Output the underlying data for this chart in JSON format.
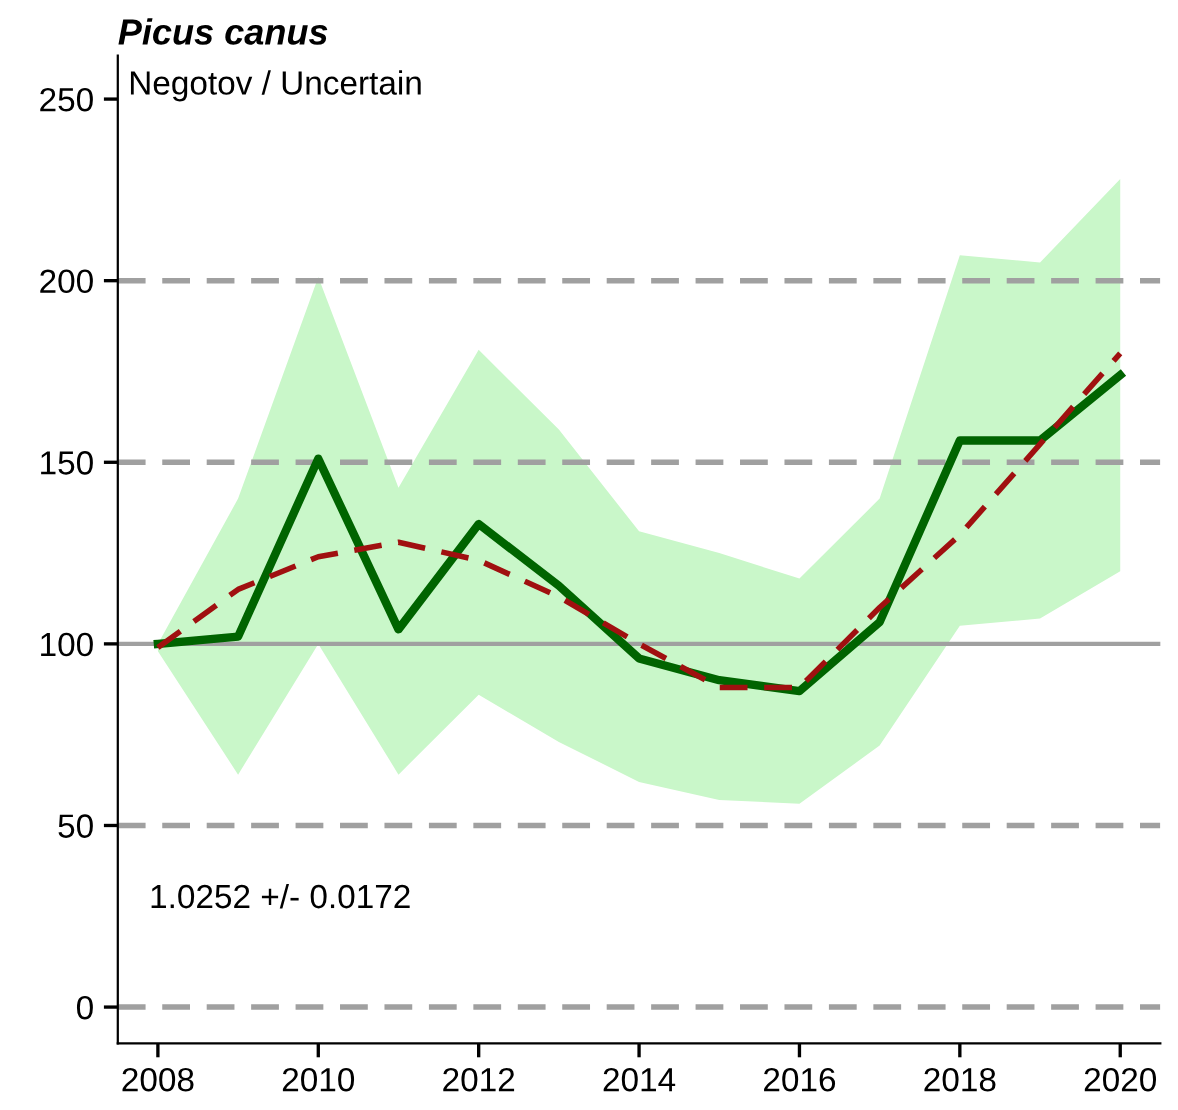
{
  "chart_data": {
    "type": "line",
    "title": "Picus canus",
    "annotations": [
      "Negotov / Uncertain",
      "1.0252 +/- 0.0172"
    ],
    "x": [
      2008,
      2009,
      2010,
      2011,
      2012,
      2013,
      2014,
      2015,
      2016,
      2017,
      2018,
      2019,
      2020
    ],
    "series": [
      {
        "color": "#006400",
        "line_style": "solid",
        "values": [
          100,
          102,
          151,
          104,
          133,
          116,
          96,
          90,
          87,
          106,
          156,
          156,
          174
        ],
        "lower": [
          98,
          64,
          100,
          64,
          86,
          73,
          62,
          57,
          56,
          72,
          105,
          107,
          120
        ],
        "upper": [
          100,
          140,
          201,
          143,
          181,
          159,
          131,
          125,
          118,
          140,
          207,
          205,
          228
        ]
      },
      {
        "color": "#a01010",
        "line_style": "dashed",
        "values": [
          99,
          115,
          124,
          128,
          123,
          113,
          100,
          88,
          88,
          110,
          130,
          155,
          180
        ]
      }
    ],
    "xlim": [
      2007.5,
      2020.5
    ],
    "xticks": [
      2008,
      2010,
      2012,
      2014,
      2016,
      2018,
      2020
    ],
    "ylim": [
      -10,
      262
    ],
    "yticks": [
      0,
      50,
      100,
      150,
      200,
      250
    ],
    "ref_lines": [
      {
        "axis": "y",
        "value": 0,
        "color": "#a0a0a0",
        "line_style": "dashed"
      },
      {
        "axis": "y",
        "value": 50,
        "color": "#a0a0a0",
        "line_style": "dashed"
      },
      {
        "axis": "y",
        "value": 100,
        "color": "#a0a0a0",
        "line_style": "solid"
      },
      {
        "axis": "y",
        "value": 150,
        "color": "#a0a0a0",
        "line_style": "dashed"
      },
      {
        "axis": "y",
        "value": 200,
        "color": "#a0a0a0",
        "line_style": "dashed"
      }
    ],
    "grid": false,
    "legend": false,
    "marker": "none"
  }
}
